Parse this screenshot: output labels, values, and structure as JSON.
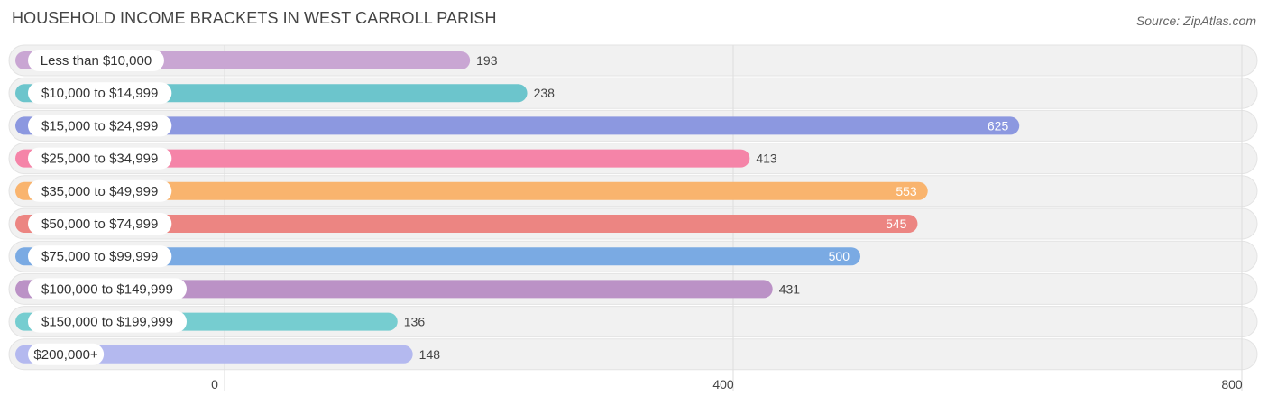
{
  "title": "HOUSEHOLD INCOME BRACKETS IN WEST CARROLL PARISH",
  "source": "Source: ZipAtlas.com",
  "chart_data": {
    "type": "bar",
    "orientation": "horizontal",
    "title": "HOUSEHOLD INCOME BRACKETS IN WEST CARROLL PARISH",
    "categories": [
      "Less than $10,000",
      "$10,000 to $14,999",
      "$15,000 to $24,999",
      "$25,000 to $34,999",
      "$35,000 to $49,999",
      "$50,000 to $74,999",
      "$75,000 to $99,999",
      "$100,000 to $149,999",
      "$150,000 to $199,999",
      "$200,000+"
    ],
    "values": [
      193,
      238,
      625,
      413,
      553,
      545,
      500,
      431,
      136,
      148
    ],
    "colors": [
      "#c9a6d3",
      "#6cc5cc",
      "#8c98e0",
      "#f584a8",
      "#f9b46e",
      "#ec8582",
      "#7aaae3",
      "#bb92c6",
      "#76cdd0",
      "#b4b9ef"
    ],
    "ticks": [
      0,
      400,
      800
    ],
    "xlim": [
      0,
      800
    ],
    "grid": true,
    "xlabel": "",
    "ylabel": ""
  }
}
